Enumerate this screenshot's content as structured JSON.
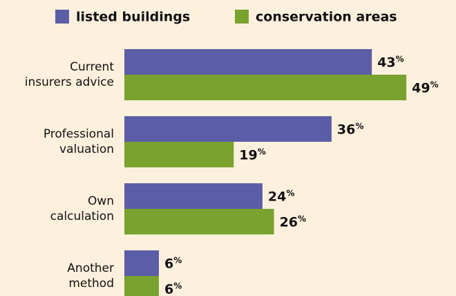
{
  "chart_data": {
    "type": "bar",
    "orientation": "horizontal",
    "categories": [
      "Current\ninsurers advice",
      "Professional\nvaluation",
      "Own\ncalculation",
      "Another\nmethod"
    ],
    "series": [
      {
        "name": "listed buildings",
        "color": "#5b5ea6",
        "values": [
          43,
          36,
          24,
          6
        ],
        "value_labels": [
          "43%",
          "36%",
          "24%",
          "6%"
        ]
      },
      {
        "name": "conservation areas",
        "color": "#7aa22f",
        "values": [
          49,
          19,
          26,
          6
        ],
        "value_labels": [
          "49%",
          "19%",
          "26%",
          "6%"
        ]
      }
    ]
  }
}
